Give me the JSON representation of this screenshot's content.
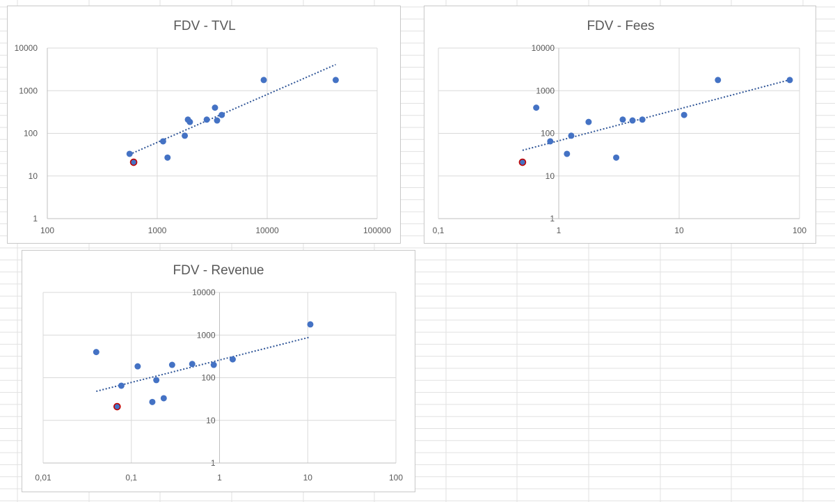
{
  "colors": {
    "point": "#4472c4",
    "highlight_point": "#4472c4",
    "highlight_outline": "#c00000",
    "trendline": "#2f5597",
    "gridline": "#d9d9d9",
    "text": "#595959"
  },
  "chart_data": [
    {
      "type": "scatter",
      "title": "FDV - TVL",
      "xscale": "log",
      "yscale": "log",
      "xlim": [
        100,
        100000
      ],
      "ylim": [
        1,
        10000
      ],
      "x_ticks": [
        "100",
        "1000",
        "10000",
        "100000"
      ],
      "y_ticks": [
        "1",
        "10",
        "100",
        "1000",
        "10000"
      ],
      "xlabel": "",
      "ylabel": "",
      "grid": true,
      "points": [
        {
          "x": 560,
          "y": 33
        },
        {
          "x": 610,
          "y": 21,
          "highlight": true
        },
        {
          "x": 1130,
          "y": 65
        },
        {
          "x": 1240,
          "y": 27
        },
        {
          "x": 1780,
          "y": 88
        },
        {
          "x": 1900,
          "y": 210
        },
        {
          "x": 1980,
          "y": 185
        },
        {
          "x": 2820,
          "y": 210
        },
        {
          "x": 3350,
          "y": 400
        },
        {
          "x": 3500,
          "y": 200
        },
        {
          "x": 3860,
          "y": 270
        },
        {
          "x": 9300,
          "y": 1780
        },
        {
          "x": 42000,
          "y": 1780
        }
      ],
      "trendline": {
        "type": "power",
        "from": [
          560,
          32
        ],
        "to": [
          42000,
          4100
        ]
      }
    },
    {
      "type": "scatter",
      "title": "FDV -  Fees",
      "xscale": "log",
      "yscale": "log",
      "xlim": [
        0.1,
        100
      ],
      "ylim": [
        1,
        10000
      ],
      "x_ticks": [
        "0,1",
        "1",
        "10",
        "100"
      ],
      "y_ticks": [
        "1",
        "10",
        "100",
        "1000",
        "10000"
      ],
      "xlabel": "",
      "ylabel": "",
      "grid": true,
      "points": [
        {
          "x": 0.5,
          "y": 21,
          "highlight": true
        },
        {
          "x": 0.65,
          "y": 400
        },
        {
          "x": 0.85,
          "y": 65
        },
        {
          "x": 1.17,
          "y": 33
        },
        {
          "x": 1.27,
          "y": 88
        },
        {
          "x": 1.77,
          "y": 185
        },
        {
          "x": 3.0,
          "y": 27
        },
        {
          "x": 3.4,
          "y": 210
        },
        {
          "x": 4.1,
          "y": 200
        },
        {
          "x": 4.95,
          "y": 210
        },
        {
          "x": 11.0,
          "y": 270
        },
        {
          "x": 21.0,
          "y": 1780
        },
        {
          "x": 83.0,
          "y": 1780
        }
      ],
      "trendline": {
        "type": "power",
        "from": [
          0.5,
          40
        ],
        "to": [
          83,
          1800
        ]
      }
    },
    {
      "type": "scatter",
      "title": "FDV - Revenue",
      "xscale": "log",
      "yscale": "log",
      "xlim": [
        0.01,
        100
      ],
      "ylim": [
        1,
        10000
      ],
      "x_ticks": [
        "0,01",
        "0,1",
        "1",
        "10",
        "100"
      ],
      "y_ticks": [
        "1",
        "10",
        "100",
        "1000",
        "10000"
      ],
      "xlabel": "",
      "ylabel": "",
      "grid": true,
      "points": [
        {
          "x": 0.04,
          "y": 400
        },
        {
          "x": 0.069,
          "y": 21,
          "highlight": true
        },
        {
          "x": 0.077,
          "y": 65
        },
        {
          "x": 0.118,
          "y": 185
        },
        {
          "x": 0.173,
          "y": 27
        },
        {
          "x": 0.192,
          "y": 88
        },
        {
          "x": 0.233,
          "y": 33
        },
        {
          "x": 0.29,
          "y": 200
        },
        {
          "x": 0.49,
          "y": 210
        },
        {
          "x": 0.86,
          "y": 200
        },
        {
          "x": 1.41,
          "y": 270
        },
        {
          "x": 10.7,
          "y": 1780
        }
      ],
      "trendline": {
        "type": "power",
        "from": [
          0.04,
          48
        ],
        "to": [
          10.7,
          900
        ]
      }
    }
  ]
}
